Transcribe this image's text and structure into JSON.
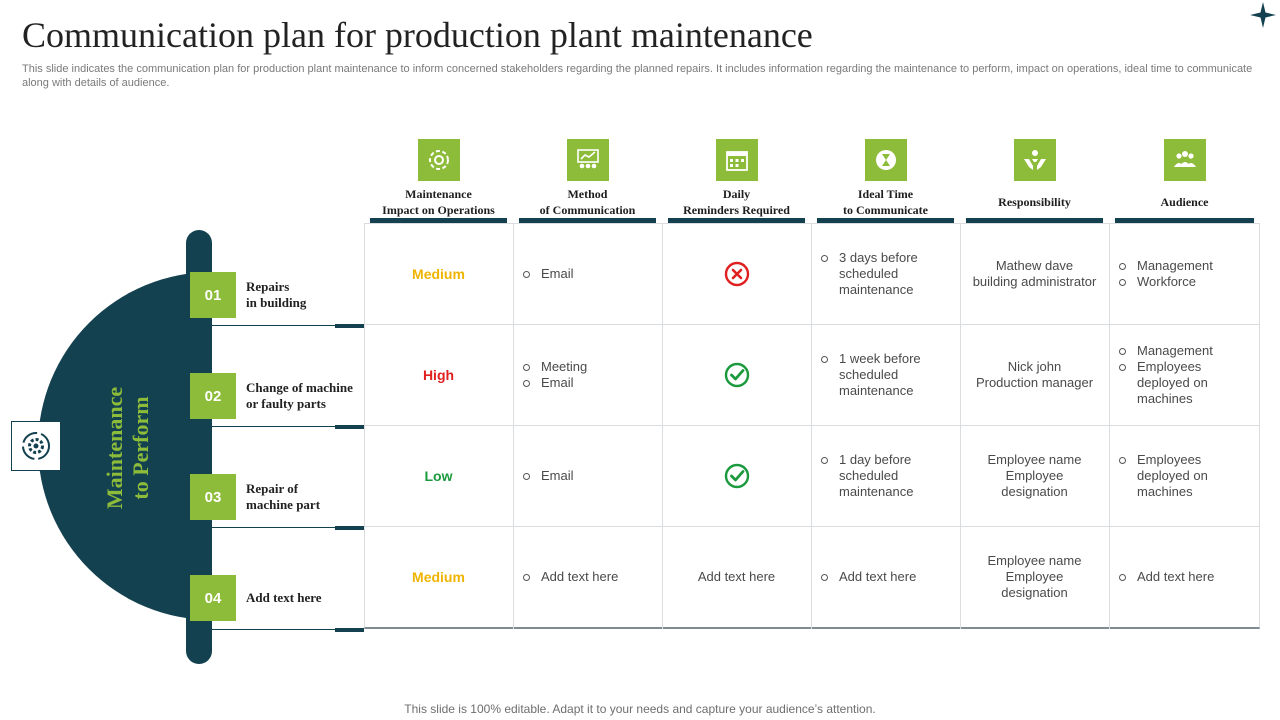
{
  "header": {
    "title": "Communication plan for production plant maintenance",
    "subtitle": "This slide indicates the communication plan for production plant maintenance to inform concerned stakeholders regarding the planned repairs. It includes information regarding the maintenance to perform, impact on operations, ideal time to communicate along with details of audience."
  },
  "left_panel": {
    "label_line1": "Maintenance",
    "label_line2": "to Perform"
  },
  "columns": [
    {
      "label": "Maintenance\nImpact on Operations",
      "icon": "gear-icon"
    },
    {
      "label": "Method\nof Communication",
      "icon": "team-chart-icon"
    },
    {
      "label": "Daily\nReminders Required",
      "icon": "calendar-icon"
    },
    {
      "label": "Ideal Time\nto Communicate",
      "icon": "hourglass-icon"
    },
    {
      "label": "Responsibility",
      "icon": "hands-icon"
    },
    {
      "label": "Audience",
      "icon": "audience-icon"
    }
  ],
  "rows": [
    {
      "number": "01",
      "label": "Repairs\nin building",
      "impact": "Medium",
      "impact_color": "#f0b400",
      "method": [
        "Email"
      ],
      "reminder": "cross",
      "reminder_text": "",
      "ideal_time": "3 days before\nscheduled\nmaintenance",
      "responsibility": "Mathew dave\nbuilding administrator",
      "audience": [
        "Management",
        "Workforce"
      ]
    },
    {
      "number": "02",
      "label": "Change of machine\nor faulty parts",
      "impact": "High",
      "impact_color": "#e02020",
      "method": [
        "Meeting",
        "Email"
      ],
      "reminder": "check",
      "reminder_text": "",
      "ideal_time": "1 week before\nscheduled\nmaintenance",
      "responsibility": "Nick john\nProduction manager",
      "audience": [
        "Management",
        "Employees\ndeployed on\nmachines"
      ]
    },
    {
      "number": "03",
      "label": "Repair of\nmachine part",
      "impact": "Low",
      "impact_color": "#1a9a3c",
      "method": [
        "Email"
      ],
      "reminder": "check",
      "reminder_text": "",
      "ideal_time": "1 day before\nscheduled\nmaintenance",
      "responsibility": "Employee name\nEmployee\ndesignation",
      "audience": [
        "Employees\ndeployed on\nmachines"
      ]
    },
    {
      "number": "04",
      "label": "Add text here",
      "impact": "Medium",
      "impact_color": "#f0b400",
      "method": [
        "Add text here"
      ],
      "reminder": "text",
      "reminder_text": "Add text here",
      "ideal_time": "Add text here",
      "responsibility": "Employee name\nEmployee\ndesignation",
      "audience": [
        "Add text here"
      ]
    }
  ],
  "colors": {
    "dark_teal": "#13414f",
    "accent_green": "#8dbb3a",
    "check_green": "#1a9a3c",
    "cross_red": "#e02020"
  },
  "footer": "This slide is 100% editable. Adapt it to your needs and capture your audience’s attention."
}
